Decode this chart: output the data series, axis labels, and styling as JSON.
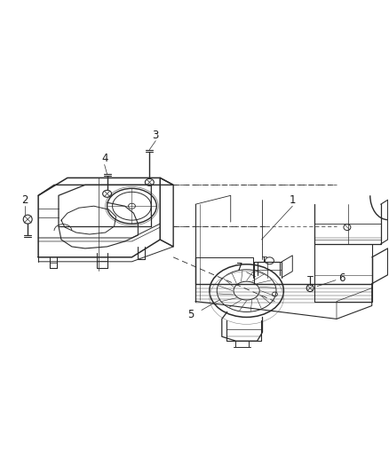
{
  "background_color": "#ffffff",
  "line_color": "#2a2a2a",
  "label_color": "#1a1a1a",
  "fig_width": 4.38,
  "fig_height": 5.33,
  "dpi": 100,
  "label_fontsize": 8.5
}
